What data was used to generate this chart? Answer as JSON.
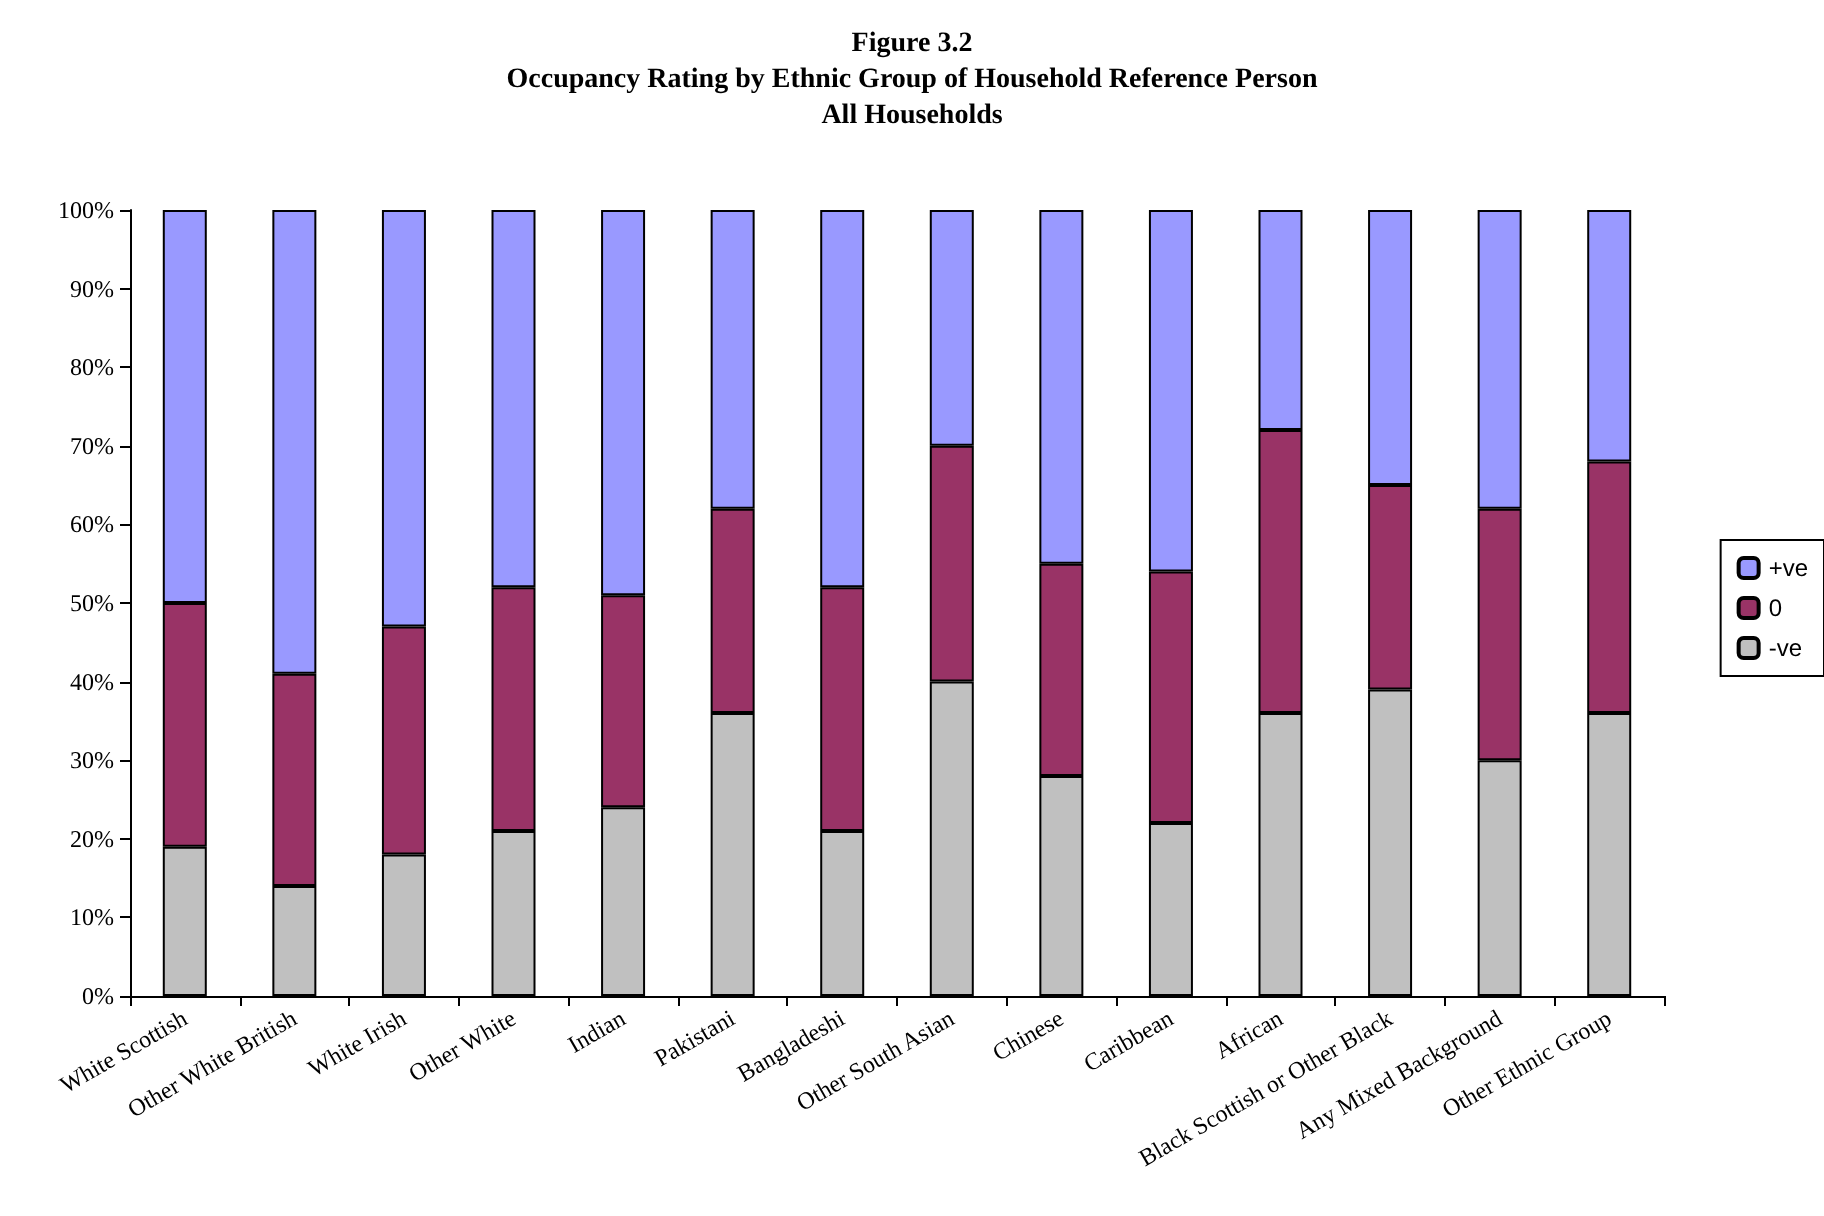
{
  "chart_data": {
    "type": "bar",
    "stacked": true,
    "title": "Figure 3.2\nOccupancy Rating by Ethnic Group of Household Reference Person\nAll Households",
    "categories": [
      "White Scottish",
      "Other White British",
      "White Irish",
      "Other White",
      "Indian",
      "Pakistani",
      "Bangladeshi",
      "Other South Asian",
      "Chinese",
      "Caribbean",
      "African",
      "Black Scottish or Other Black",
      "Any Mixed Background",
      "Other Ethnic Group"
    ],
    "series": [
      {
        "name": "-ve",
        "color": "#c0c0c0",
        "values": [
          19,
          14,
          18,
          21,
          24,
          36,
          21,
          40,
          28,
          22,
          36,
          39,
          30,
          36
        ]
      },
      {
        "name": "0",
        "color": "#993366",
        "values": [
          31,
          27,
          29,
          31,
          27,
          26,
          31,
          30,
          27,
          32,
          36,
          26,
          32,
          32
        ]
      },
      {
        "name": "+ve",
        "color": "#9999ff",
        "values": [
          50,
          59,
          53,
          48,
          49,
          38,
          48,
          30,
          45,
          46,
          28,
          35,
          38,
          32
        ]
      }
    ],
    "ylim": [
      0,
      100
    ],
    "yticks": [
      {
        "value": 0,
        "label": "0%"
      },
      {
        "value": 10,
        "label": "10%"
      },
      {
        "value": 20,
        "label": "20%"
      },
      {
        "value": 30,
        "label": "30%"
      },
      {
        "value": 40,
        "label": "40%"
      },
      {
        "value": 50,
        "label": "50%"
      },
      {
        "value": 60,
        "label": "60%"
      },
      {
        "value": 70,
        "label": "70%"
      },
      {
        "value": 80,
        "label": "80%"
      },
      {
        "value": 90,
        "label": "90%"
      },
      {
        "value": 100,
        "label": "100%"
      }
    ],
    "grid": false,
    "legend": "right"
  }
}
